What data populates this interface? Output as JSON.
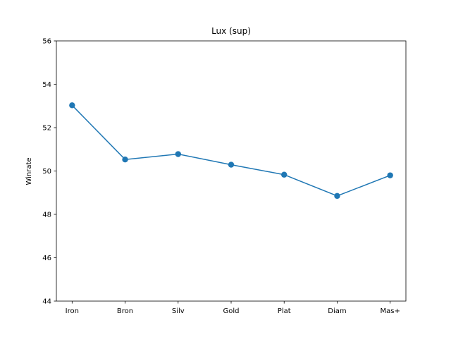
{
  "chart_data": {
    "type": "line",
    "title": "Lux (sup)",
    "xlabel": "",
    "ylabel": "Winrate",
    "categories": [
      "Iron",
      "Bron",
      "Silv",
      "Gold",
      "Plat",
      "Diam",
      "Mas+"
    ],
    "series": [
      {
        "values": [
          53.03,
          50.53,
          50.78,
          50.29,
          49.83,
          48.85,
          49.8
        ],
        "color": "#1f77b4"
      }
    ],
    "ylim": [
      44,
      56
    ],
    "yticks": [
      44,
      46,
      48,
      50,
      52,
      54,
      56
    ],
    "grid": false,
    "legend": "none"
  }
}
